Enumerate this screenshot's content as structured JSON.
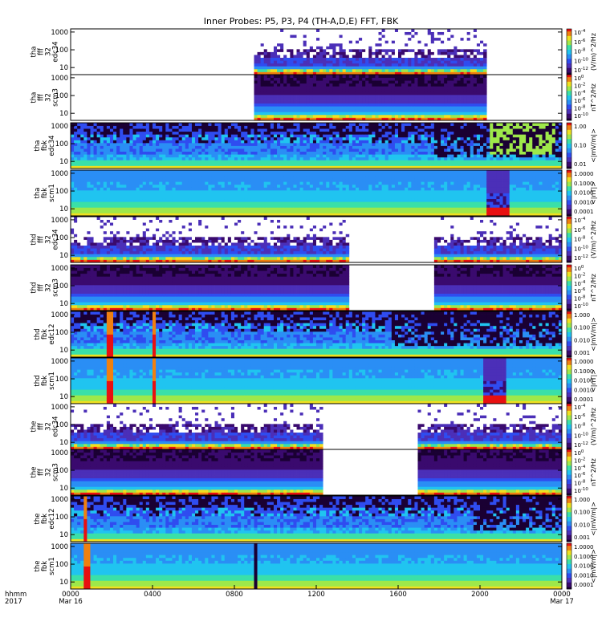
{
  "title": "Inner Probes: P5, P3, P4 (TH-A,D,E) FFT, FBK",
  "chart_data": {
    "type": "heatmap",
    "title": "Inner Probes: P5, P3, P4 (TH-A,D,E) FFT, FBK",
    "x_axis": {
      "label_lines": [
        "hhmm",
        "2017"
      ],
      "range_hours": [
        0,
        24
      ],
      "ticks": [
        {
          "hour": 0,
          "label": "0000",
          "sublabel": "Mar 16"
        },
        {
          "hour": 4,
          "label": "0400",
          "sublabel": ""
        },
        {
          "hour": 8,
          "label": "0800",
          "sublabel": ""
        },
        {
          "hour": 12,
          "label": "1200",
          "sublabel": ""
        },
        {
          "hour": 16,
          "label": "1600",
          "sublabel": ""
        },
        {
          "hour": 20,
          "label": "2000",
          "sublabel": ""
        },
        {
          "hour": 24,
          "label": "0000",
          "sublabel": "Mar 17"
        }
      ]
    },
    "y_axis": {
      "scale": "log",
      "range": [
        4,
        1500
      ],
      "ticks": [
        {
          "v": 10,
          "label": "10"
        },
        {
          "v": 100,
          "label": "100"
        },
        {
          "v": 1000,
          "label": "1000"
        }
      ]
    },
    "panels": [
      {
        "id": "tha-fff32-edc34",
        "ylabel": [
          "tha",
          "fff",
          "32",
          "edc34"
        ],
        "unit": "(V/m)^2/Hz",
        "kind": "fft_e",
        "coverage": [
          [
            8.9,
            20.3
          ]
        ]
      },
      {
        "id": "tha-fff32-scm3",
        "ylabel": [
          "tha",
          "fff",
          "32",
          "scm3"
        ],
        "unit": "nT^2/Hz",
        "kind": "fft_b",
        "coverage": [
          [
            8.9,
            20.3
          ]
        ]
      },
      {
        "id": "tha-fbk-edc34",
        "ylabel": [
          "tha",
          "fbk",
          "edc34"
        ],
        "unit": "<|mV/m|>",
        "kind": "fbk_e",
        "coverage": [
          [
            0,
            24
          ]
        ],
        "events": [
          {
            "h": 17.8,
            "kind": "dark_start"
          },
          {
            "h": 22.1,
            "kind": "storm"
          }
        ]
      },
      {
        "id": "tha-fbk-scm1",
        "ylabel": [
          "tha",
          "fbk",
          "scm1"
        ],
        "unit": "<|nT|>",
        "kind": "fbk_b",
        "coverage": [
          [
            0,
            24
          ]
        ],
        "events": [
          {
            "h": 20.9,
            "kind": "burst"
          }
        ]
      },
      {
        "id": "thd-fff32-edc34",
        "ylabel": [
          "thd",
          "fff",
          "32",
          "edc34"
        ],
        "unit": "(V/m)^2/Hz",
        "kind": "fft_e",
        "coverage": [
          [
            0,
            13.6
          ],
          [
            17.8,
            24
          ]
        ]
      },
      {
        "id": "thd-fff32-scm3",
        "ylabel": [
          "thd",
          "fff",
          "32",
          "scm3"
        ],
        "unit": "nT^2/Hz",
        "kind": "fft_b",
        "coverage": [
          [
            0,
            13.6
          ],
          [
            17.8,
            24
          ]
        ]
      },
      {
        "id": "thd-fbk-edc12",
        "ylabel": [
          "thd",
          "fbk",
          "edc12"
        ],
        "unit": "<|mV/m|>",
        "kind": "fbk_e",
        "coverage": [
          [
            0,
            24
          ]
        ],
        "events": [
          {
            "h": 1.9,
            "kind": "spike"
          },
          {
            "h": 4.1,
            "kind": "spike"
          },
          {
            "h": 15.7,
            "kind": "dark_start"
          }
        ]
      },
      {
        "id": "thd-fbk-scm1",
        "ylabel": [
          "thd",
          "fbk",
          "scm1"
        ],
        "unit": "<|nT|>",
        "kind": "fbk_b",
        "coverage": [
          [
            0,
            24
          ]
        ],
        "events": [
          {
            "h": 1.9,
            "kind": "spike"
          },
          {
            "h": 4.1,
            "kind": "spike"
          },
          {
            "h": 20.7,
            "kind": "burst"
          }
        ]
      },
      {
        "id": "the-fff32-edc34",
        "ylabel": [
          "the",
          "fff",
          "32",
          "edc34"
        ],
        "unit": "(V/m)^2/Hz",
        "kind": "fft_e",
        "coverage": [
          [
            0,
            12.4
          ],
          [
            17.0,
            24
          ]
        ]
      },
      {
        "id": "the-fff32-scm3",
        "ylabel": [
          "the",
          "fff",
          "32",
          "scm3"
        ],
        "unit": "nT^2/Hz",
        "kind": "fft_b",
        "coverage": [
          [
            0,
            12.4
          ],
          [
            17.0,
            24
          ]
        ]
      },
      {
        "id": "the-fbk-edc12",
        "ylabel": [
          "the",
          "fbk",
          "edc12"
        ],
        "unit": "<|mV/m|>",
        "kind": "fbk_e",
        "coverage": [
          [
            0,
            24
          ]
        ],
        "events": [
          {
            "h": 0.7,
            "kind": "spike"
          },
          {
            "h": 19.7,
            "kind": "dark_start"
          }
        ]
      },
      {
        "id": "the-fbk-scm1",
        "ylabel": [
          "the",
          "fbk",
          "scm1"
        ],
        "unit": "<|mV/m|>",
        "kind": "fbk_b",
        "coverage": [
          [
            0,
            24
          ]
        ],
        "events": [
          {
            "h": 0.8,
            "kind": "spike"
          },
          {
            "h": 9.0,
            "kind": "line"
          }
        ]
      }
    ],
    "colorbars": {
      "fft_e": {
        "labels": [
          "10^-4",
          "10^-6",
          "10^-8",
          "10^-10",
          "10^-12"
        ],
        "unit": "(V/m)^2/Hz"
      },
      "fft_b": {
        "labels": [
          "10^0",
          "10^-2",
          "10^-4",
          "10^-6",
          "10^-8",
          "10^-10"
        ],
        "unit": "nT^2/Hz"
      },
      "fbk_e": {
        "labels": [
          "1.00",
          "0.10",
          "0.01"
        ],
        "unit": "<|mV/m|>"
      },
      "fbk_e2": {
        "labels": [
          "1.000",
          "0.100",
          "0.010",
          "0.001"
        ],
        "unit": "<|mV/m|>"
      },
      "fbk_b": {
        "labels": [
          "1.0000",
          "0.1000",
          "0.0100",
          "0.0010",
          "0.0001"
        ],
        "unit": "<|nT|>"
      },
      "fbk_b_e": {
        "labels": [
          "1.0000",
          "0.1000",
          "0.0100",
          "0.0010",
          "0.0001"
        ],
        "unit": "<|mV/m|>"
      }
    },
    "colorscale": [
      "#ffffff",
      "#1a0033",
      "#3a0a6e",
      "#4b2fb8",
      "#2f4cf0",
      "#2a8ef5",
      "#20c4f0",
      "#3ae0a8",
      "#9ee84a",
      "#f0e020",
      "#f08010",
      "#e81010"
    ]
  }
}
